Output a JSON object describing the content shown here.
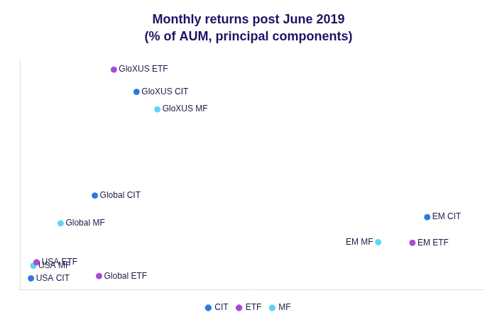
{
  "chart_data": {
    "type": "scatter",
    "title": [
      "Monthly returns post June 2019",
      "(% of AUM, principal components)"
    ],
    "xlim": [
      0,
      100
    ],
    "ylim": [
      0,
      100
    ],
    "tick_labels": false,
    "grid": false,
    "legend": "bottom",
    "series": [
      {
        "name": "CIT",
        "color": "#2b7bdb",
        "labels": [
          "GloXUS CIT",
          "Global CIT",
          "USA CIT",
          "EM CIT"
        ],
        "x": [
          25.2,
          16.2,
          2.4,
          88.0
        ],
        "y": [
          86.1,
          40.9,
          4.8,
          31.5
        ]
      },
      {
        "name": "ETF",
        "color": "#a64bd9",
        "labels": [
          "GloXUS ETF",
          "Global ETF",
          "USA ETF",
          "EM ETF"
        ],
        "x": [
          20.3,
          17.1,
          3.6,
          84.8
        ],
        "y": [
          95.8,
          5.8,
          11.8,
          20.3
        ]
      },
      {
        "name": "MF",
        "color": "#5fd4f4",
        "labels": [
          "GloXUS MF",
          "Global MF",
          "USA MF",
          "EM MF"
        ],
        "x": [
          29.7,
          8.8,
          2.9,
          77.4
        ],
        "y": [
          78.5,
          28.8,
          10.3,
          20.6
        ]
      }
    ]
  }
}
